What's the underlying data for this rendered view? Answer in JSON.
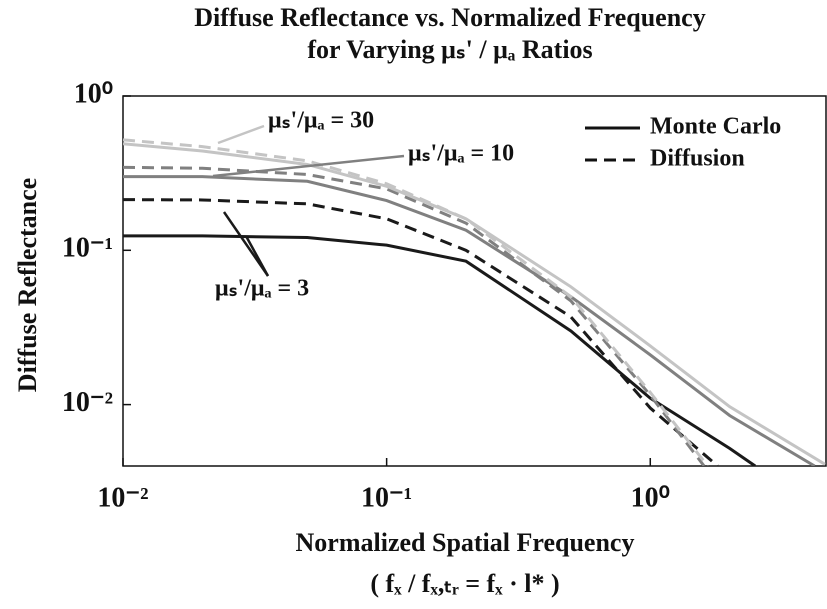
{
  "chart_data": {
    "type": "line",
    "title": [
      "Diffuse Reflectance vs. Normalized Frequency",
      "for Varying μₛ' / μₐ Ratios"
    ],
    "xlabel": [
      "Normalized Spatial Frequency",
      "( fₓ / fₓ,ₜᵣ = fₓ · l* )"
    ],
    "ylabel": "Diffuse Reflectance",
    "xlog": true,
    "ylog": true,
    "xlim": [
      0.01,
      4.64
    ],
    "ylim": [
      0.004,
      1
    ],
    "xticks": [
      {
        "value": 0.01,
        "label": "10⁻²"
      },
      {
        "value": 0.1,
        "label": "10⁻¹"
      },
      {
        "value": 1,
        "label": "10⁰"
      }
    ],
    "yticks": [
      {
        "value": 0.01,
        "label": "10⁻²"
      },
      {
        "value": 0.1,
        "label": "10⁻¹"
      },
      {
        "value": 1,
        "label": "10⁰"
      }
    ],
    "legend": {
      "position": "upper right",
      "entries": [
        {
          "label": "Monte Carlo",
          "dash": "solid"
        },
        {
          "label": "Diffusion",
          "dash": "dashed"
        }
      ]
    },
    "annotations": [
      "μₛ'/μₐ = 30",
      "μₛ'/μₐ = 10",
      "μₛ'/μₐ = 3"
    ],
    "series": [
      {
        "color": "#1a1a1a",
        "dash": "solid",
        "x": [
          0.01,
          0.02,
          0.05,
          0.1,
          0.2,
          0.5,
          1,
          2,
          2.5
        ],
        "values": [
          0.124,
          0.124,
          0.121,
          0.108,
          0.085,
          0.03,
          0.011,
          0.0052,
          0.004
        ]
      },
      {
        "color": "#1a1a1a",
        "dash": "dashed",
        "x": [
          0.01,
          0.02,
          0.05,
          0.1,
          0.2,
          0.5,
          1,
          1.8
        ],
        "values": [
          0.213,
          0.212,
          0.2,
          0.16,
          0.1,
          0.037,
          0.0095,
          0.004
        ]
      },
      {
        "color": "#808080",
        "dash": "solid",
        "x": [
          0.01,
          0.02,
          0.05,
          0.1,
          0.2,
          0.5,
          1,
          2,
          4.2
        ],
        "values": [
          0.3,
          0.3,
          0.28,
          0.21,
          0.135,
          0.05,
          0.021,
          0.0085,
          0.004
        ]
      },
      {
        "color": "#808080",
        "dash": "dashed",
        "x": [
          0.01,
          0.02,
          0.05,
          0.1,
          0.2,
          0.5,
          1,
          1.6
        ],
        "values": [
          0.345,
          0.34,
          0.31,
          0.25,
          0.15,
          0.047,
          0.0115,
          0.004
        ]
      },
      {
        "color": "#c4c4c4",
        "dash": "solid",
        "x": [
          0.01,
          0.02,
          0.05,
          0.1,
          0.2,
          0.5,
          1,
          2,
          4.6
        ],
        "values": [
          0.49,
          0.44,
          0.36,
          0.26,
          0.16,
          0.058,
          0.024,
          0.0097,
          0.0041
        ]
      },
      {
        "color": "#c4c4c4",
        "dash": "dashed",
        "x": [
          0.01,
          0.02,
          0.05,
          0.1,
          0.2,
          0.5,
          1,
          1.65
        ],
        "values": [
          0.52,
          0.47,
          0.38,
          0.27,
          0.16,
          0.05,
          0.012,
          0.004
        ]
      }
    ]
  }
}
